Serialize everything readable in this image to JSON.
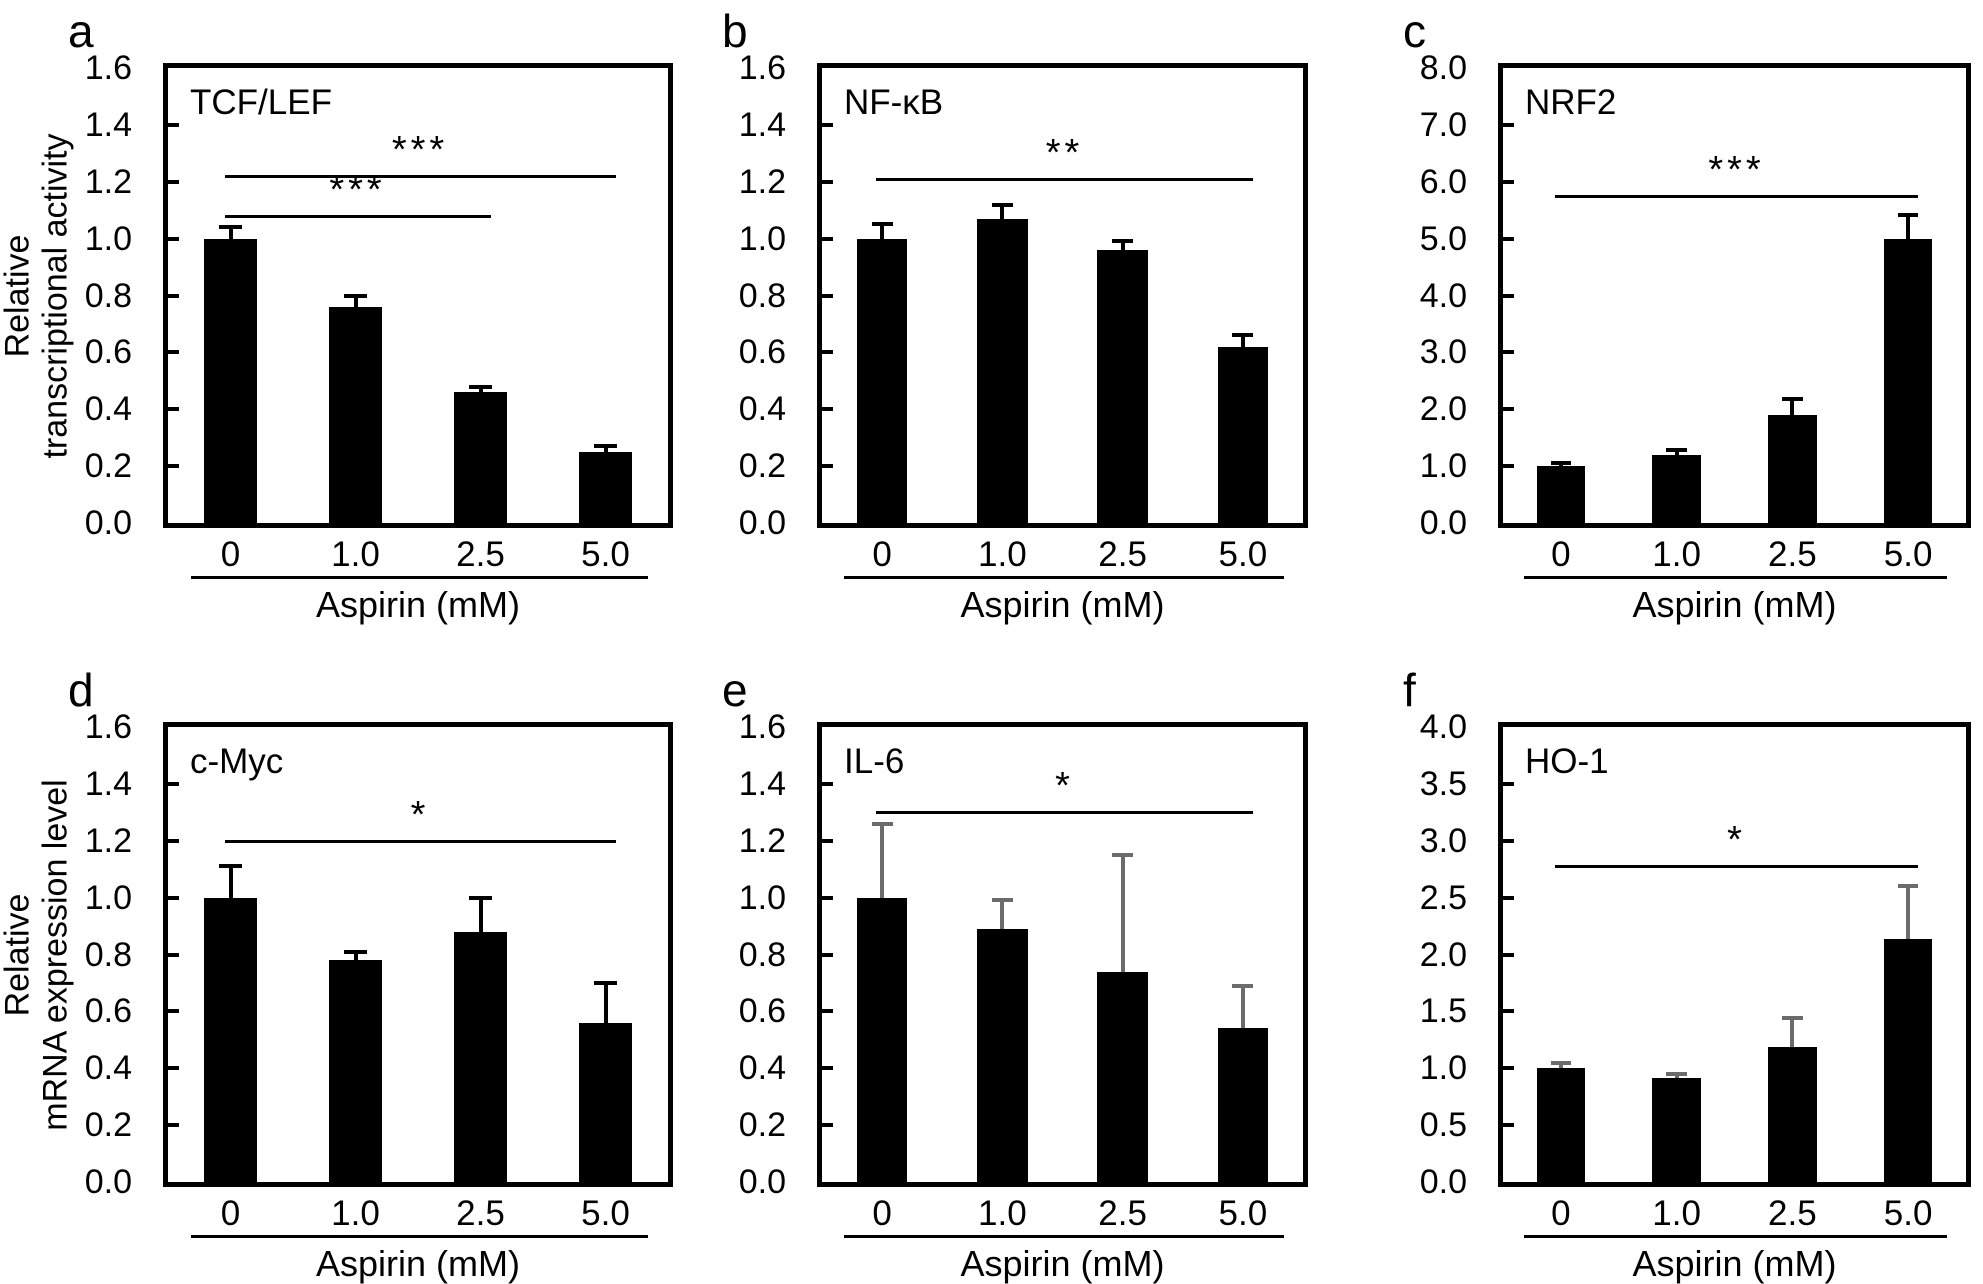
{
  "figure": {
    "x_title": "Aspirin (mM)",
    "categories": [
      "0",
      "1.0",
      "2.5",
      "5.0"
    ],
    "row_titles": [
      {
        "lines": [
          "Relative",
          "transcriptional activity"
        ]
      },
      {
        "lines": [
          "Relative",
          "mRNA expression level"
        ]
      }
    ],
    "colors": {
      "bar": "#000000",
      "axis": "#000000",
      "gray_error": "#6b6b6b"
    }
  },
  "chart_data": [
    {
      "type": "bar",
      "panel_letter": "a",
      "title": "TCF/LEF",
      "categories": [
        "0",
        "1.0",
        "2.5",
        "5.0"
      ],
      "values": [
        1.0,
        0.76,
        0.46,
        0.25
      ],
      "errors": [
        0.04,
        0.04,
        0.02,
        0.02
      ],
      "xlabel": "Aspirin (mM)",
      "ylabel": "Relative transcriptional activity",
      "ylim": [
        0,
        1.6
      ],
      "ytick_step": 0.2,
      "grid": false,
      "legend": "none",
      "error_color": "#000000",
      "significance": [
        {
          "from": 0,
          "to": 2,
          "y": 1.08,
          "label": "***"
        },
        {
          "from": 0,
          "to": 3,
          "y": 1.22,
          "label": "***"
        }
      ]
    },
    {
      "type": "bar",
      "panel_letter": "b",
      "title": "NF-κB",
      "categories": [
        "0",
        "1.0",
        "2.5",
        "5.0"
      ],
      "values": [
        1.0,
        1.07,
        0.96,
        0.62
      ],
      "errors": [
        0.05,
        0.05,
        0.03,
        0.04
      ],
      "xlabel": "Aspirin (mM)",
      "ylabel": "Relative transcriptional activity",
      "ylim": [
        0,
        1.6
      ],
      "ytick_step": 0.2,
      "grid": false,
      "legend": "none",
      "error_color": "#000000",
      "significance": [
        {
          "from": 0,
          "to": 3,
          "y": 1.21,
          "label": "**"
        }
      ]
    },
    {
      "type": "bar",
      "panel_letter": "c",
      "title": "NRF2",
      "categories": [
        "0",
        "1.0",
        "2.5",
        "5.0"
      ],
      "values": [
        1.0,
        1.2,
        1.9,
        5.0
      ],
      "errors": [
        0.06,
        0.08,
        0.28,
        0.42
      ],
      "xlabel": "Aspirin (mM)",
      "ylabel": "Relative transcriptional activity",
      "ylim": [
        0,
        8.0
      ],
      "ytick_step": 1.0,
      "grid": false,
      "legend": "none",
      "error_color": "#000000",
      "significance": [
        {
          "from": 0,
          "to": 3,
          "y": 5.75,
          "label": "***"
        }
      ]
    },
    {
      "type": "bar",
      "panel_letter": "d",
      "title": "c-Myc",
      "categories": [
        "0",
        "1.0",
        "2.5",
        "5.0"
      ],
      "values": [
        1.0,
        0.78,
        0.88,
        0.56
      ],
      "errors": [
        0.11,
        0.03,
        0.12,
        0.14
      ],
      "xlabel": "Aspirin (mM)",
      "ylabel": "Relative mRNA expression level",
      "ylim": [
        0,
        1.6
      ],
      "ytick_step": 0.2,
      "grid": false,
      "legend": "none",
      "error_color": "#000000",
      "significance": [
        {
          "from": 0,
          "to": 3,
          "y": 1.2,
          "label": "*"
        }
      ]
    },
    {
      "type": "bar",
      "panel_letter": "e",
      "title": "IL-6",
      "categories": [
        "0",
        "1.0",
        "2.5",
        "5.0"
      ],
      "values": [
        1.0,
        0.89,
        0.74,
        0.54
      ],
      "errors": [
        0.26,
        0.1,
        0.41,
        0.15
      ],
      "xlabel": "Aspirin (mM)",
      "ylabel": "Relative mRNA expression level",
      "ylim": [
        0,
        1.6
      ],
      "ytick_step": 0.2,
      "grid": false,
      "legend": "none",
      "error_color": "#6b6b6b",
      "significance": [
        {
          "from": 0,
          "to": 3,
          "y": 1.3,
          "label": "*"
        }
      ]
    },
    {
      "type": "bar",
      "panel_letter": "f",
      "title": "HO-1",
      "categories": [
        "0",
        "1.0",
        "2.5",
        "5.0"
      ],
      "values": [
        1.0,
        0.91,
        1.19,
        2.14
      ],
      "errors": [
        0.05,
        0.04,
        0.25,
        0.46
      ],
      "xlabel": "Aspirin (mM)",
      "ylabel": "Relative mRNA expression level",
      "ylim": [
        0,
        4.0
      ],
      "ytick_step": 0.5,
      "grid": false,
      "legend": "none",
      "error_color": "#6b6b6b",
      "significance": [
        {
          "from": 0,
          "to": 3,
          "y": 2.78,
          "label": "*"
        }
      ]
    }
  ]
}
